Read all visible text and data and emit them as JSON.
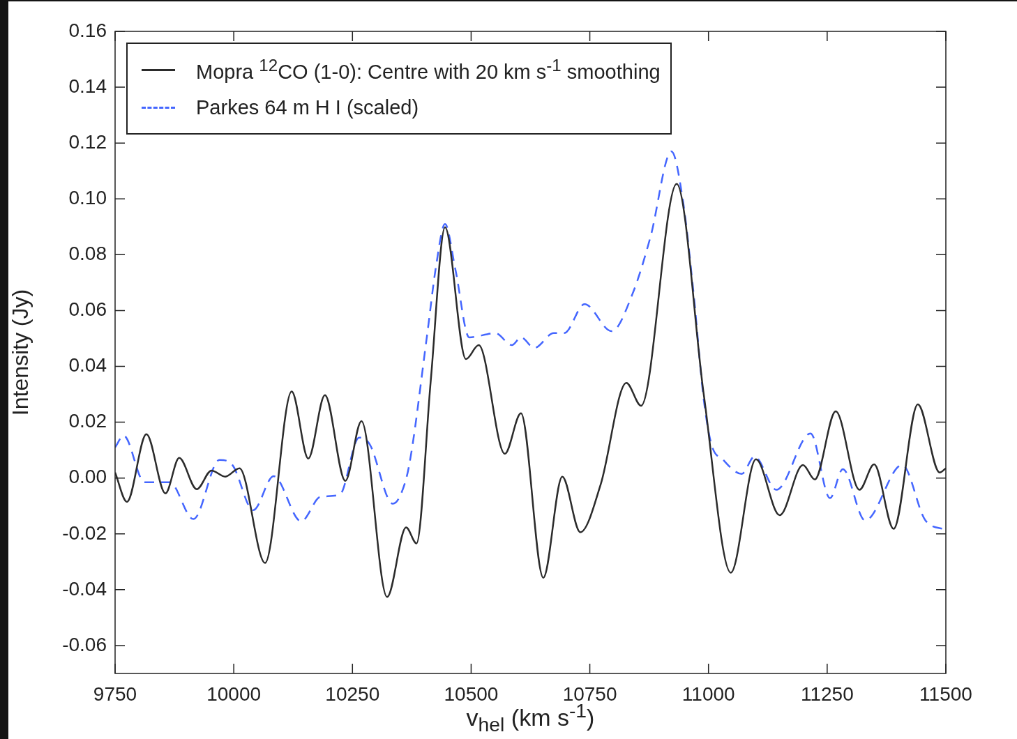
{
  "chart_data": {
    "type": "line",
    "xlabel": "v$_{hel}$ (km s$^{-1}$)",
    "ylabel": "Intensity (Jy)",
    "xlim": [
      9750,
      11500
    ],
    "ylim": [
      -0.07,
      0.16
    ],
    "xticks": [
      9750,
      10000,
      10250,
      10500,
      10750,
      11000,
      11250,
      11500
    ],
    "yticks": [
      {
        "value": -0.06,
        "label": "-0.06"
      },
      {
        "value": -0.04,
        "label": "-0.04"
      },
      {
        "value": -0.02,
        "label": "-0.02"
      },
      {
        "value": 0,
        "label": "0.00"
      },
      {
        "value": 0.02,
        "label": "0.02"
      },
      {
        "value": 0.04,
        "label": "0.04"
      },
      {
        "value": 0.06,
        "label": "0.06"
      },
      {
        "value": 0.08,
        "label": "0.08"
      },
      {
        "value": 0.1,
        "label": "0.10"
      },
      {
        "value": 0.12,
        "label": "0.12"
      },
      {
        "value": 0.14,
        "label": "0.14"
      },
      {
        "value": 0.16,
        "label": "0.16"
      }
    ],
    "grid": false,
    "legend": "top left",
    "marker": "none",
    "series": [
      {
        "name": "Mopra $^{12}$CO (1-0): Centre with 20 km s$^{-1}$ smoothing",
        "color": "#2b2b2b",
        "line_style": "solid",
        "x": [
          9750,
          9775,
          9816,
          9856,
          9885,
          9922,
          9953,
          9982,
          10012,
          10066,
          10122,
          10157,
          10192,
          10235,
          10269,
          10323,
          10363,
          10385,
          10415,
          10445,
          10489,
          10516,
          10571,
          10605,
          10652,
          10692,
          10730,
          10773,
          10827,
          10858,
          10933,
          10990,
          11047,
          11100,
          11150,
          11199,
          11224,
          11268,
          11318,
          11349,
          11390,
          11441,
          11487,
          11500
        ],
        "values": [
          0.002,
          -0.0085,
          0.0157,
          -0.0055,
          0.0072,
          -0.004,
          0.0027,
          0.0005,
          0.0035,
          -0.0304,
          0.031,
          0.007,
          0.0297,
          -0.001,
          0.0204,
          -0.0426,
          -0.0177,
          -0.0234,
          0.035,
          0.0898,
          0.0426,
          0.0476,
          0.0087,
          0.0232,
          -0.0357,
          0.0005,
          -0.0194,
          -0.0022,
          0.0341,
          0.0259,
          0.1054,
          0.03,
          -0.0339,
          0.0067,
          -0.0133,
          0.0047,
          -0.0005,
          0.0239,
          -0.0042,
          0.0049,
          -0.0182,
          0.0264,
          0.002,
          0.0035
        ]
      },
      {
        "name": "Parkes 64 m H I (scaled)",
        "color": "#4466ff",
        "line_style": "dashed",
        "x": [
          9750,
          9768,
          9812,
          9865,
          9915,
          9970,
          9997,
          10041,
          10084,
          10142,
          10183,
          10223,
          10264,
          10286,
          10335,
          10350,
          10369,
          10407,
          10426,
          10445,
          10467,
          10496,
          10551,
          10586,
          10605,
          10633,
          10674,
          10696,
          10739,
          10796,
          10840,
          10878,
          10922,
          10946,
          10968,
          10990,
          11006,
          11031,
          11070,
          11097,
          11143,
          11215,
          11256,
          11283,
          11330,
          11408,
          11457,
          11500
        ],
        "values": [
          0.011,
          0.0152,
          -0.0015,
          -0.0015,
          -0.0147,
          0.0065,
          0.0047,
          -0.0115,
          0.0007,
          -0.0155,
          -0.0067,
          -0.006,
          0.0145,
          0.0122,
          -0.0092,
          -0.0065,
          0.0042,
          0.0509,
          0.0758,
          0.091,
          0.0746,
          0.0504,
          0.0519,
          0.0476,
          0.0504,
          0.0466,
          0.0519,
          0.0519,
          0.0623,
          0.0526,
          0.066,
          0.0865,
          0.117,
          0.0995,
          0.0671,
          0.0282,
          0.0122,
          0.0065,
          0.0015,
          0.0077,
          -0.0042,
          0.016,
          -0.0072,
          0.0032,
          -0.0152,
          0.0047,
          -0.0152,
          -0.0185
        ]
      }
    ]
  }
}
